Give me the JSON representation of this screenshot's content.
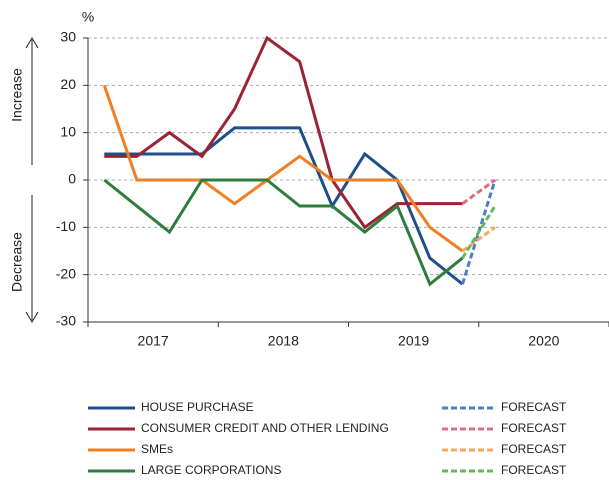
{
  "chart_data": {
    "type": "line",
    "unit_label": "%",
    "axis_notes": {
      "up": "Increase",
      "down": "Decrease"
    },
    "x": [
      2017.125,
      2017.375,
      2017.625,
      2017.875,
      2018.125,
      2018.375,
      2018.625,
      2018.875,
      2019.125,
      2019.375,
      2019.625,
      2019.875
    ],
    "forecast_x": 2020.125,
    "xlim": [
      2017,
      2021
    ],
    "xticks": [
      2017,
      2018,
      2019,
      2020,
      2021
    ],
    "xtick_labels": [
      "2017",
      "2018",
      "2019",
      "2020"
    ],
    "ylim": [
      -30,
      30
    ],
    "yticks": [
      -30,
      -20,
      -10,
      0,
      10,
      20,
      30
    ],
    "grid": true,
    "series": [
      {
        "name": "HOUSE PURCHASE",
        "color": "#1f4e8c",
        "forecast_color": "#4a7fc1",
        "forecast_name": "FORECAST",
        "values": [
          5.5,
          5.5,
          5.5,
          5.5,
          11,
          11,
          11,
          -5.5,
          5.5,
          0,
          -16.5,
          -22
        ],
        "forecast": 0
      },
      {
        "name": "CONSUMER CREDIT AND OTHER LENDING",
        "color": "#9b2335",
        "forecast_color": "#d9707d",
        "forecast_name": "FORECAST",
        "values": [
          5,
          5,
          10,
          5,
          15,
          30,
          25,
          0,
          -10,
          -5,
          -5,
          -5
        ],
        "forecast": 0
      },
      {
        "name": "SMEs",
        "color": "#f07f22",
        "forecast_color": "#f5a860",
        "forecast_name": "FORECAST",
        "values": [
          20,
          0,
          0,
          0,
          -5,
          0,
          5,
          0,
          0,
          0,
          -10,
          -15
        ],
        "forecast": -10
      },
      {
        "name": "LARGE CORPORATIONS",
        "color": "#2e7d3a",
        "forecast_color": "#62b85a",
        "forecast_name": "FORECAST",
        "values": [
          0,
          -5.5,
          -11,
          0,
          0,
          0,
          -5.5,
          -5.5,
          -11,
          -5.5,
          -22,
          -16.5
        ],
        "forecast": -5.5
      }
    ]
  }
}
